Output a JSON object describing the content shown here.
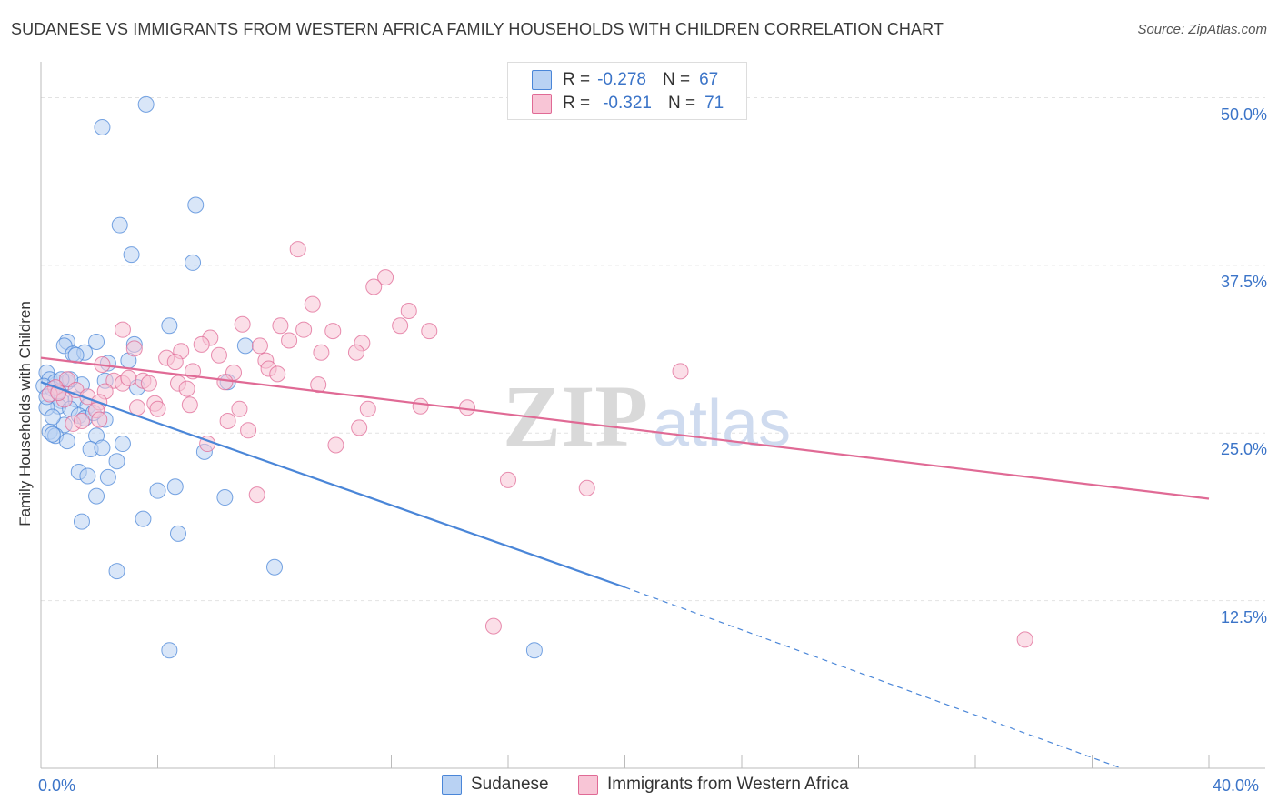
{
  "title": "SUDANESE VS IMMIGRANTS FROM WESTERN AFRICA FAMILY HOUSEHOLDS WITH CHILDREN CORRELATION CHART",
  "source": "Source: ZipAtlas.com",
  "watermark": {
    "part1": "ZIP",
    "part2": "atlas"
  },
  "legend": {
    "rows": [
      {
        "r_label": "R =",
        "r_value": "-0.278",
        "n_label": "N =",
        "n_value": "67",
        "color": "#4a86d8",
        "fill": "#b9d2f3"
      },
      {
        "r_label": "R =",
        "r_value": "-0.321",
        "n_label": "N =",
        "n_value": "71",
        "color": "#e06a95",
        "fill": "#f8c5d6"
      }
    ]
  },
  "bottom_legend": [
    "Sudanese",
    "Immigrants from Western Africa"
  ],
  "chart_data": {
    "type": "scatter",
    "ylabel": "Family Households with Children",
    "xlim": [
      0,
      40
    ],
    "ylim": [
      0,
      52
    ],
    "x_tick_labels": [
      "0.0%",
      "40.0%"
    ],
    "y_ticks": [
      12.5,
      25.0,
      37.5,
      50.0
    ],
    "y_tick_labels": [
      "12.5%",
      "25.0%",
      "37.5%",
      "50.0%"
    ],
    "grid": true,
    "series": [
      {
        "name": "Sudanese",
        "color": "#4a86d8",
        "fill": "#b9d2f3",
        "trend": {
          "x0": 0.0,
          "y0": 28.8,
          "x1": 20.0,
          "y1": 13.5,
          "dash_to_x": 37.0,
          "dash_to_y": 0.0
        },
        "points": [
          [
            3.6,
            49.5
          ],
          [
            2.1,
            47.8
          ],
          [
            5.3,
            42.0
          ],
          [
            2.7,
            40.5
          ],
          [
            3.1,
            38.3
          ],
          [
            5.2,
            37.7
          ],
          [
            0.9,
            31.8
          ],
          [
            1.9,
            31.8
          ],
          [
            3.2,
            31.6
          ],
          [
            4.4,
            33.0
          ],
          [
            7.0,
            31.5
          ],
          [
            0.8,
            31.5
          ],
          [
            1.1,
            30.9
          ],
          [
            1.5,
            31.0
          ],
          [
            2.3,
            30.2
          ],
          [
            3.0,
            30.4
          ],
          [
            0.2,
            29.5
          ],
          [
            0.3,
            29.0
          ],
          [
            0.5,
            28.8
          ],
          [
            0.9,
            28.8
          ],
          [
            1.4,
            28.6
          ],
          [
            2.2,
            28.9
          ],
          [
            3.3,
            28.4
          ],
          [
            6.4,
            28.8
          ],
          [
            0.1,
            28.5
          ],
          [
            0.4,
            28.3
          ],
          [
            0.7,
            27.4
          ],
          [
            1.2,
            27.5
          ],
          [
            1.6,
            27.0
          ],
          [
            0.6,
            27.0
          ],
          [
            0.2,
            26.9
          ],
          [
            1.0,
            26.8
          ],
          [
            1.3,
            26.3
          ],
          [
            1.5,
            26.1
          ],
          [
            2.2,
            26.0
          ],
          [
            0.8,
            25.6
          ],
          [
            0.3,
            25.1
          ],
          [
            0.5,
            24.8
          ],
          [
            0.9,
            24.4
          ],
          [
            1.9,
            24.8
          ],
          [
            2.8,
            24.2
          ],
          [
            1.7,
            23.8
          ],
          [
            2.1,
            23.9
          ],
          [
            5.6,
            23.6
          ],
          [
            2.6,
            22.9
          ],
          [
            1.3,
            22.1
          ],
          [
            1.6,
            21.8
          ],
          [
            2.3,
            21.7
          ],
          [
            4.0,
            20.7
          ],
          [
            4.6,
            21.0
          ],
          [
            1.9,
            20.3
          ],
          [
            6.3,
            20.2
          ],
          [
            1.4,
            18.4
          ],
          [
            3.5,
            18.6
          ],
          [
            4.7,
            17.5
          ],
          [
            2.6,
            14.7
          ],
          [
            8.0,
            15.0
          ],
          [
            4.4,
            8.8
          ],
          [
            16.9,
            8.8
          ],
          [
            0.4,
            26.2
          ],
          [
            0.6,
            28.1
          ],
          [
            1.0,
            29.0
          ],
          [
            0.2,
            27.7
          ],
          [
            0.7,
            29.0
          ],
          [
            1.2,
            30.8
          ],
          [
            0.4,
            24.9
          ],
          [
            1.8,
            26.5
          ]
        ]
      },
      {
        "name": "Immigrants from Western Africa",
        "color": "#e06a95",
        "fill": "#f8c5d6",
        "trend": {
          "x0": 0.0,
          "y0": 30.6,
          "x1": 40.0,
          "y1": 20.1
        },
        "points": [
          [
            8.8,
            38.7
          ],
          [
            11.8,
            36.6
          ],
          [
            11.4,
            35.9
          ],
          [
            12.6,
            34.1
          ],
          [
            9.3,
            34.6
          ],
          [
            12.3,
            33.0
          ],
          [
            13.3,
            32.6
          ],
          [
            6.9,
            33.1
          ],
          [
            8.2,
            33.0
          ],
          [
            9.0,
            32.7
          ],
          [
            10.0,
            32.6
          ],
          [
            2.8,
            32.7
          ],
          [
            5.8,
            32.1
          ],
          [
            5.5,
            31.6
          ],
          [
            7.5,
            31.5
          ],
          [
            8.5,
            31.9
          ],
          [
            11.0,
            31.7
          ],
          [
            3.2,
            31.3
          ],
          [
            4.8,
            31.1
          ],
          [
            6.1,
            30.8
          ],
          [
            9.6,
            31.0
          ],
          [
            10.8,
            31.0
          ],
          [
            4.3,
            30.6
          ],
          [
            4.6,
            30.3
          ],
          [
            7.7,
            30.4
          ],
          [
            2.1,
            30.1
          ],
          [
            5.2,
            29.6
          ],
          [
            6.6,
            29.5
          ],
          [
            7.8,
            29.8
          ],
          [
            8.1,
            29.4
          ],
          [
            21.9,
            29.6
          ],
          [
            0.9,
            29.0
          ],
          [
            2.5,
            28.9
          ],
          [
            3.5,
            28.9
          ],
          [
            3.7,
            28.7
          ],
          [
            4.7,
            28.7
          ],
          [
            6.3,
            28.8
          ],
          [
            9.5,
            28.6
          ],
          [
            0.5,
            28.4
          ],
          [
            1.2,
            28.2
          ],
          [
            2.2,
            28.1
          ],
          [
            2.8,
            28.7
          ],
          [
            5.0,
            28.3
          ],
          [
            0.3,
            27.9
          ],
          [
            1.6,
            27.7
          ],
          [
            2.0,
            27.3
          ],
          [
            3.9,
            27.2
          ],
          [
            5.1,
            27.1
          ],
          [
            0.8,
            27.5
          ],
          [
            1.9,
            26.7
          ],
          [
            3.3,
            26.9
          ],
          [
            4.0,
            26.8
          ],
          [
            6.8,
            26.8
          ],
          [
            11.2,
            26.8
          ],
          [
            13.0,
            27.0
          ],
          [
            14.6,
            26.9
          ],
          [
            2.0,
            26.0
          ],
          [
            6.4,
            25.9
          ],
          [
            1.1,
            25.7
          ],
          [
            10.9,
            25.4
          ],
          [
            7.1,
            25.2
          ],
          [
            5.7,
            24.2
          ],
          [
            10.1,
            24.1
          ],
          [
            16.0,
            21.5
          ],
          [
            18.7,
            20.9
          ],
          [
            7.4,
            20.4
          ],
          [
            15.5,
            10.6
          ],
          [
            33.7,
            9.6
          ],
          [
            0.6,
            28.0
          ],
          [
            1.4,
            25.9
          ],
          [
            3.0,
            29.1
          ]
        ]
      }
    ]
  }
}
